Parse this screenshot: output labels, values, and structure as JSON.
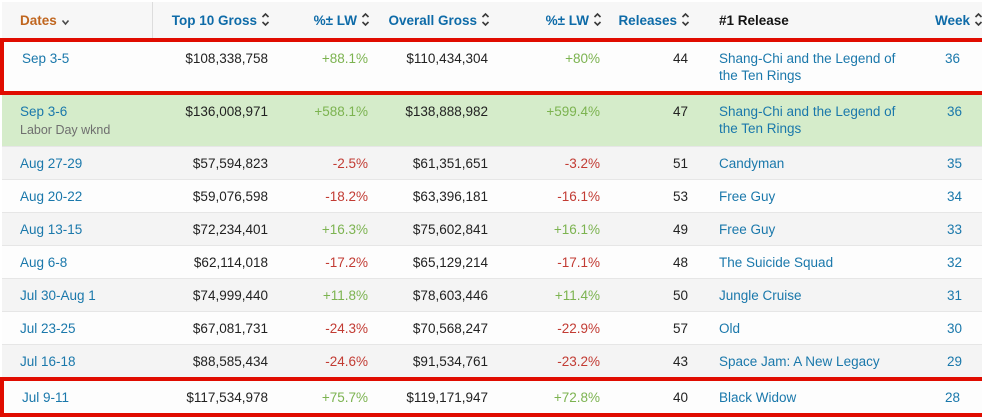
{
  "colors": {
    "highlight_border": "#e00c00",
    "holiday_row_bg": "#d5ecca",
    "zebra_row_bg": "#f4f4f4",
    "positive_pct": "#7cb350",
    "negative_pct": "#c23b33",
    "link_blue": "#1a78ab",
    "header_blue": "#0e6ba8",
    "dates_header_orange": "#c0661f"
  },
  "table": {
    "columns": [
      {
        "key": "dates",
        "label": "Dates",
        "sort": "down",
        "icon": "chevron-down-icon",
        "align": "left"
      },
      {
        "key": "top10-gross",
        "label": "Top 10 Gross",
        "sort": "updown",
        "icon": "sort-updown-icon",
        "align": "right"
      },
      {
        "key": "top10-pct-lw",
        "label": "%± LW",
        "sort": "updown",
        "icon": "sort-updown-icon",
        "align": "right"
      },
      {
        "key": "overall-gross",
        "label": "Overall Gross",
        "sort": "updown",
        "icon": "sort-updown-icon",
        "align": "right"
      },
      {
        "key": "overall-pct-lw",
        "label": "%± LW",
        "sort": "updown",
        "icon": "sort-updown-icon",
        "align": "right"
      },
      {
        "key": "releases",
        "label": "Releases",
        "sort": "updown",
        "icon": "sort-updown-icon",
        "align": "right"
      },
      {
        "key": "number-one-release",
        "label": "#1 Release",
        "sort": "none",
        "icon": "",
        "align": "left"
      },
      {
        "key": "week",
        "label": "Week",
        "sort": "updown",
        "icon": "sort-updown-icon",
        "align": "right"
      }
    ],
    "rows": [
      {
        "date": "Sep 3-5",
        "note": "",
        "top10_gross": "$108,338,758",
        "top10_pct_lw": "+88.1%",
        "overall_gross": "$110,434,304",
        "overall_pct_lw": "+80%",
        "releases": "44",
        "number_one_release": "Shang-Chi and the Legend of the Ten Rings",
        "week": "36",
        "highlighted": true,
        "holiday": false
      },
      {
        "date": "Sep 3-6",
        "note": "Labor Day wknd",
        "top10_gross": "$136,008,971",
        "top10_pct_lw": "+588.1%",
        "overall_gross": "$138,888,982",
        "overall_pct_lw": "+599.4%",
        "releases": "47",
        "number_one_release": "Shang-Chi and the Legend of the Ten Rings",
        "week": "36",
        "highlighted": false,
        "holiday": true
      },
      {
        "date": "Aug 27-29",
        "note": "",
        "top10_gross": "$57,594,823",
        "top10_pct_lw": "-2.5%",
        "overall_gross": "$61,351,651",
        "overall_pct_lw": "-3.2%",
        "releases": "51",
        "number_one_release": "Candyman",
        "week": "35",
        "highlighted": false,
        "holiday": false
      },
      {
        "date": "Aug 20-22",
        "note": "",
        "top10_gross": "$59,076,598",
        "top10_pct_lw": "-18.2%",
        "overall_gross": "$63,396,181",
        "overall_pct_lw": "-16.1%",
        "releases": "53",
        "number_one_release": "Free Guy",
        "week": "34",
        "highlighted": false,
        "holiday": false
      },
      {
        "date": "Aug 13-15",
        "note": "",
        "top10_gross": "$72,234,401",
        "top10_pct_lw": "+16.3%",
        "overall_gross": "$75,602,841",
        "overall_pct_lw": "+16.1%",
        "releases": "49",
        "number_one_release": "Free Guy",
        "week": "33",
        "highlighted": false,
        "holiday": false
      },
      {
        "date": "Aug 6-8",
        "note": "",
        "top10_gross": "$62,114,018",
        "top10_pct_lw": "-17.2%",
        "overall_gross": "$65,129,214",
        "overall_pct_lw": "-17.1%",
        "releases": "48",
        "number_one_release": "The Suicide Squad",
        "week": "32",
        "highlighted": false,
        "holiday": false
      },
      {
        "date": "Jul 30-Aug 1",
        "note": "",
        "top10_gross": "$74,999,440",
        "top10_pct_lw": "+11.8%",
        "overall_gross": "$78,603,446",
        "overall_pct_lw": "+11.4%",
        "releases": "50",
        "number_one_release": "Jungle Cruise",
        "week": "31",
        "highlighted": false,
        "holiday": false
      },
      {
        "date": "Jul 23-25",
        "note": "",
        "top10_gross": "$67,081,731",
        "top10_pct_lw": "-24.3%",
        "overall_gross": "$70,568,247",
        "overall_pct_lw": "-22.9%",
        "releases": "57",
        "number_one_release": "Old",
        "week": "30",
        "highlighted": false,
        "holiday": false
      },
      {
        "date": "Jul 16-18",
        "note": "",
        "top10_gross": "$88,585,434",
        "top10_pct_lw": "-24.6%",
        "overall_gross": "$91,534,761",
        "overall_pct_lw": "-23.2%",
        "releases": "43",
        "number_one_release": "Space Jam: A New Legacy",
        "week": "29",
        "highlighted": false,
        "holiday": false
      },
      {
        "date": "Jul 9-11",
        "note": "",
        "top10_gross": "$117,534,978",
        "top10_pct_lw": "+75.7%",
        "overall_gross": "$119,171,947",
        "overall_pct_lw": "+72.8%",
        "releases": "40",
        "number_one_release": "Black Widow",
        "week": "28",
        "highlighted": true,
        "holiday": false
      }
    ]
  }
}
